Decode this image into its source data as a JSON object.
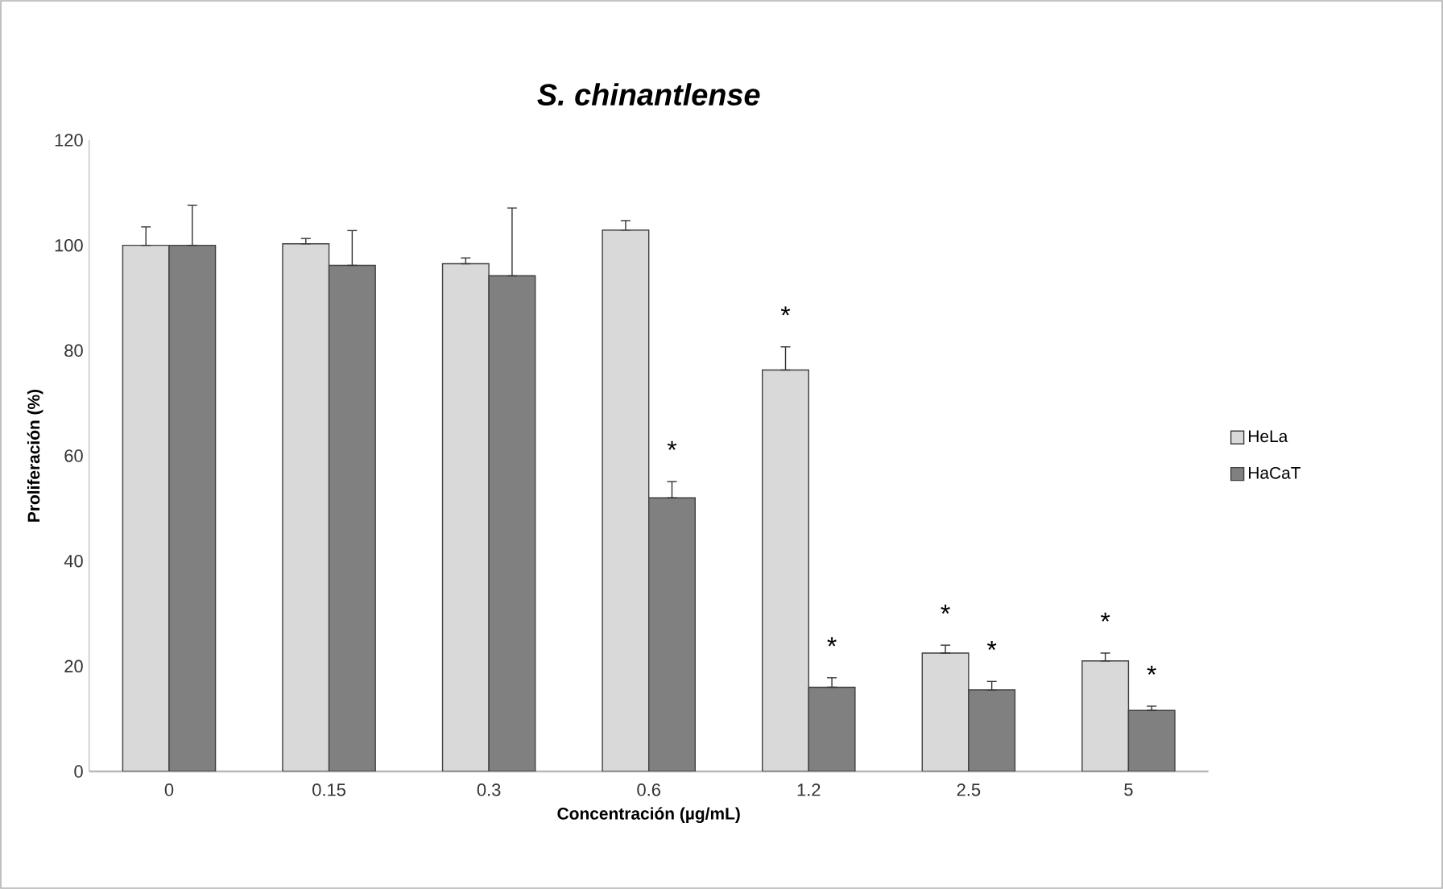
{
  "chart_data": {
    "type": "bar",
    "title": "S. chinantlense",
    "xlabel": "Concentración (µg/mL)",
    "ylabel": "Proliferación (%)",
    "categories": [
      "0",
      "0.15",
      "0.3",
      "0.6",
      "1.2",
      "2.5",
      "5"
    ],
    "series": [
      {
        "name": "HeLa",
        "color": "#d9d9d9",
        "values": [
          100,
          100.3,
          96.5,
          102.9,
          76.3,
          22.5,
          21.0
        ],
        "errors": [
          [
            100,
            103.5
          ],
          [
            100.3,
            101.3
          ],
          [
            96.5,
            97.6
          ],
          [
            102.9,
            104.7
          ],
          [
            76.3,
            80.7
          ],
          [
            22.5,
            24.0
          ],
          [
            21.0,
            22.5
          ]
        ]
      },
      {
        "name": "HaCaT",
        "color": "#808080",
        "values": [
          100,
          96.2,
          94.2,
          52.0,
          16.0,
          15.5,
          11.6
        ],
        "errors": [
          [
            100,
            107.6
          ],
          [
            96.2,
            102.8
          ],
          [
            94.2,
            107.1
          ],
          [
            52.0,
            55.1
          ],
          [
            16.0,
            17.8
          ],
          [
            15.5,
            17.1
          ],
          [
            11.6,
            12.4
          ]
        ]
      }
    ],
    "ylim": [
      0,
      120
    ],
    "yticks": [
      0,
      20,
      40,
      60,
      80,
      100,
      120
    ],
    "grid": false,
    "legend": "right",
    "annotations": [
      {
        "text": "*",
        "x": "0.6",
        "y": 52.0
      },
      {
        "text": "*",
        "x": "1.2",
        "y": 76.3
      },
      {
        "text": "*",
        "x": "1.2",
        "y": 16.0
      },
      {
        "text": "*",
        "x": "2.5",
        "y": 22.5
      },
      {
        "text": "*",
        "x": "2.5",
        "y": 15.5
      },
      {
        "text": "*",
        "x": "5",
        "y": 21.0
      },
      {
        "text": "*",
        "x": "5",
        "y": 11.6
      }
    ]
  }
}
